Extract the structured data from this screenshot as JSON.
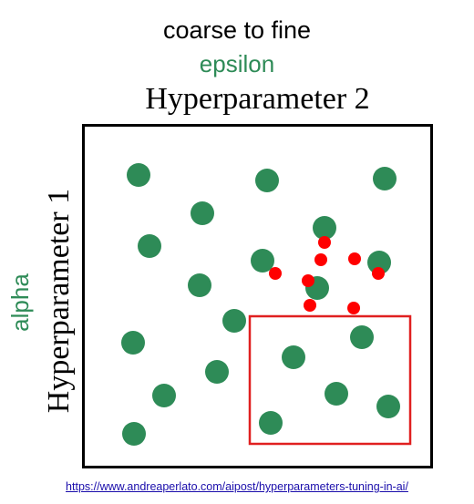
{
  "title": "coarse to fine",
  "top_label": "epsilon",
  "side_label": "alpha",
  "axis_top_label": "Hyperparameter 2",
  "axis_side_label": "Hyperparameter 1",
  "source_link": "https://www.andreaperlato.com/aipost/hyperparameters-tuning-in-ai/",
  "colors": {
    "coarse_point": "#2e8b57",
    "fine_point": "#ff0000",
    "zoom_box": "#e02020",
    "frame": "#000000",
    "label_green": "#2e8b57"
  },
  "chart_data": {
    "type": "scatter",
    "title": "coarse to fine",
    "xlabel": "Hyperparameter 2",
    "ylabel": "Hyperparameter 1",
    "xlim": [
      0,
      385
    ],
    "ylim": [
      0,
      378
    ],
    "grid": false,
    "legend": "none",
    "coarse_points": [
      {
        "x": 62,
        "y": 322
      },
      {
        "x": 203,
        "y": 316
      },
      {
        "x": 332,
        "y": 318
      },
      {
        "x": 132,
        "y": 280
      },
      {
        "x": 266,
        "y": 264
      },
      {
        "x": 74,
        "y": 244
      },
      {
        "x": 198,
        "y": 228
      },
      {
        "x": 326,
        "y": 226
      },
      {
        "x": 129,
        "y": 201
      },
      {
        "x": 258,
        "y": 198
      },
      {
        "x": 167,
        "y": 162
      },
      {
        "x": 56,
        "y": 138
      },
      {
        "x": 307,
        "y": 144
      },
      {
        "x": 232,
        "y": 122
      },
      {
        "x": 148,
        "y": 106
      },
      {
        "x": 90,
        "y": 80
      },
      {
        "x": 279,
        "y": 82
      },
      {
        "x": 336,
        "y": 68
      },
      {
        "x": 207,
        "y": 50
      },
      {
        "x": 57,
        "y": 38
      }
    ],
    "fine_points": [
      {
        "x": 266,
        "y": 248
      },
      {
        "x": 262,
        "y": 229
      },
      {
        "x": 299,
        "y": 230
      },
      {
        "x": 212,
        "y": 214
      },
      {
        "x": 248,
        "y": 206
      },
      {
        "x": 325,
        "y": 214
      },
      {
        "x": 250,
        "y": 179
      },
      {
        "x": 298,
        "y": 176
      }
    ],
    "zoom_region": {
      "x": [
        184,
        360
      ],
      "y": [
        27,
        167
      ]
    }
  }
}
